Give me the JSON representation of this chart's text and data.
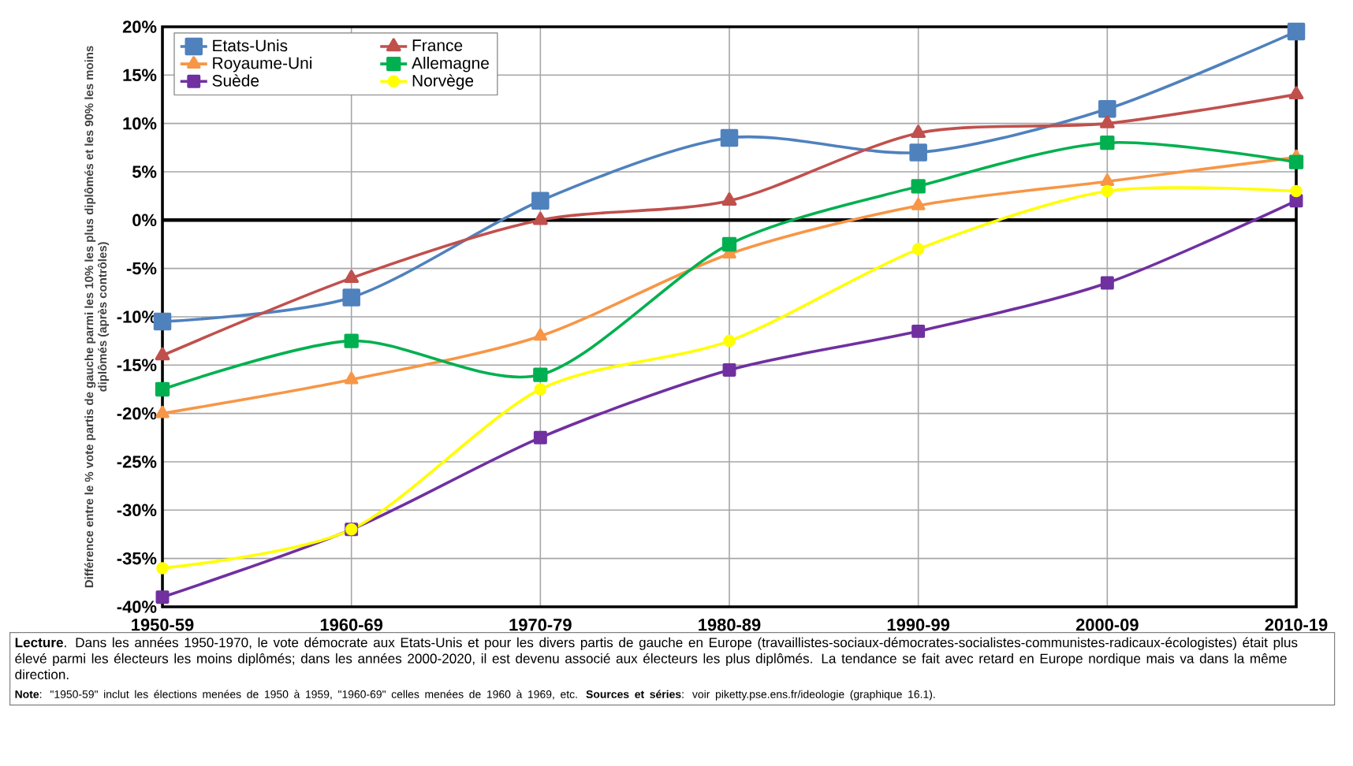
{
  "chart_data": {
    "type": "line",
    "ylabel": "Différence entre le % vote partis de gauche parmi les 10% les plus diplômés et les 90% les moins diplômés (après contrôles)",
    "categories": [
      "1950-59",
      "1960-69",
      "1970-79",
      "1980-89",
      "1990-99",
      "2000-09",
      "2010-19"
    ],
    "series": [
      {
        "name": "Etats-Unis",
        "color": "#4f81bd",
        "marker": "square",
        "values": [
          -10.5,
          -8,
          2,
          8.5,
          7,
          11.5,
          19.5
        ]
      },
      {
        "name": "France",
        "color": "#c0504d",
        "marker": "triangle",
        "values": [
          -14,
          -6,
          0,
          2,
          9,
          10,
          13
        ]
      },
      {
        "name": "Royaume-Uni",
        "color": "#f79646",
        "marker": "triangle",
        "values": [
          -20,
          -16.5,
          -12,
          -3.5,
          1.5,
          4,
          6.5
        ]
      },
      {
        "name": "Allemagne",
        "color": "#00b050",
        "marker": "square",
        "values": [
          -17.5,
          -12.5,
          -16,
          -2.5,
          3.5,
          8,
          6
        ]
      },
      {
        "name": "Suède",
        "color": "#7030a0",
        "marker": "square",
        "values": [
          -39,
          -32,
          -22.5,
          -15.5,
          -11.5,
          -6.5,
          2
        ]
      },
      {
        "name": "Norvège",
        "color": "#ffff00",
        "marker": "circle",
        "values": [
          -36,
          -32,
          -17.5,
          -12.5,
          -3,
          3,
          3
        ]
      }
    ],
    "ylim": [
      -40,
      20
    ],
    "yticks": [
      {
        "value": -40,
        "label": "-40%"
      },
      {
        "value": -35,
        "label": "-35%"
      },
      {
        "value": -30,
        "label": "-30%"
      },
      {
        "value": -25,
        "label": "-25%"
      },
      {
        "value": -20,
        "label": "-20%"
      },
      {
        "value": -15,
        "label": "-15%"
      },
      {
        "value": -10,
        "label": "-10%"
      },
      {
        "value": -5,
        "label": "-5%"
      },
      {
        "value": 0,
        "label": "0%"
      },
      {
        "value": 5,
        "label": "5%"
      },
      {
        "value": 10,
        "label": "10%"
      },
      {
        "value": 15,
        "label": "15%"
      },
      {
        "value": 20,
        "label": "20%"
      }
    ],
    "grid": true,
    "legend": "top left",
    "line_style": "solid",
    "ref_lines": [
      {
        "axis": "y",
        "value": 0,
        "color": "#000000"
      }
    ],
    "annotations": [
      "**Lecture**. Dans les années 1950-1970, le vote démocrate aux Etats-Unis et pour les divers partis de gauche en Europe (travaillistes-sociaux-démocrates-socialistes-communistes-radicaux-écologistes) était plus élevé parmi les électeurs les moins diplômés; dans les années 2000-2020, il est devenu associé aux électeurs les plus diplômés. La tendance se fait avec retard en Europe nordique mais va dans la même direction.",
      "**Note**: \"1950-59\" inclut les élections menées de 1950 à 1959, \"1960-69\" celles menées de 1960 à 1969, etc. **Sources et séries**: voir piketty.pse.ens.fr/ideologie (graphique 16.1)."
    ]
  }
}
